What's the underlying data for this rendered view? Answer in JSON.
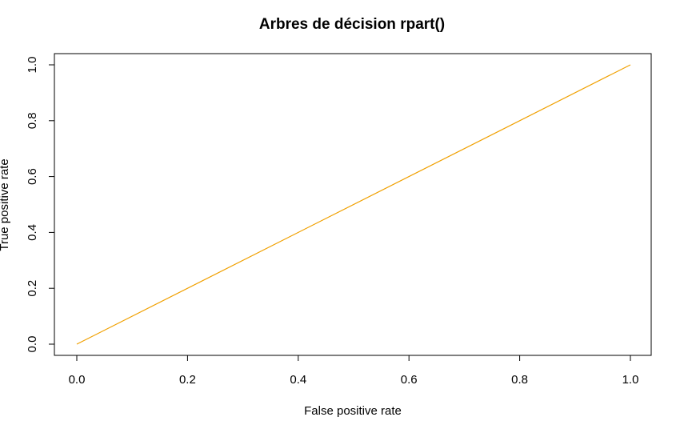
{
  "chart_data": {
    "type": "line",
    "title": "Arbres de décision rpart()",
    "xlabel": "False positive rate",
    "ylabel": "True positive rate",
    "xlim": [
      0,
      1
    ],
    "ylim": [
      0,
      1
    ],
    "x_ticks": [
      0.0,
      0.2,
      0.4,
      0.6,
      0.8,
      1.0
    ],
    "y_ticks": [
      0.0,
      0.2,
      0.4,
      0.6,
      0.8,
      1.0
    ],
    "x_tick_labels": [
      "0.0",
      "0.2",
      "0.4",
      "0.6",
      "0.8",
      "1.0"
    ],
    "y_tick_labels": [
      "0.0",
      "0.2",
      "0.4",
      "0.6",
      "0.8",
      "1.0"
    ],
    "grid": false,
    "legend": "none",
    "series": [
      {
        "color": "#F0A000",
        "x": [
          0.0,
          1.0
        ],
        "y": [
          0.0,
          1.0
        ]
      }
    ]
  }
}
